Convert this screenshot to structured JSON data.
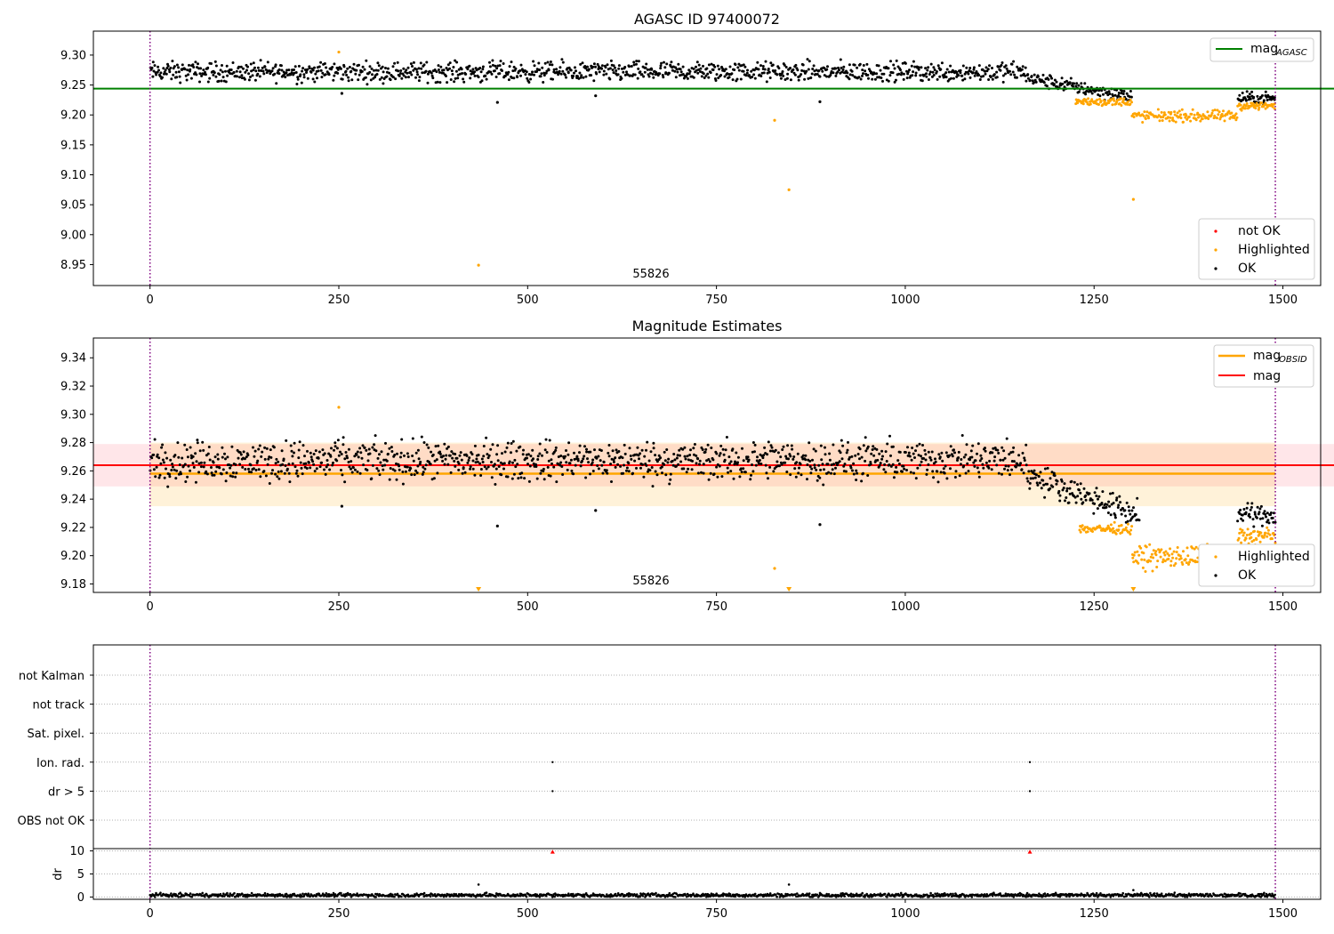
{
  "chart_data": [
    {
      "type": "scatter",
      "title": "AGASC ID 97400072",
      "xlim": [
        -75,
        1550
      ],
      "ylim": [
        8.915,
        9.34
      ],
      "xticks": [
        0,
        250,
        500,
        750,
        1000,
        1250,
        1500
      ],
      "yticks": [
        8.95,
        9.0,
        9.05,
        9.1,
        9.15,
        9.2,
        9.25,
        9.3
      ],
      "ytick_labels": [
        "8.95",
        "9.00",
        "9.05",
        "9.10",
        "9.15",
        "9.20",
        "9.25",
        "9.30"
      ],
      "annotation": "55826",
      "vlines": [
        0,
        1490
      ],
      "lines": [
        {
          "name": "mag",
          "subscript": "AGASC",
          "y": 9.244,
          "x": [
            -75,
            1570
          ],
          "color": "#008000"
        }
      ],
      "legend_top": [
        {
          "name": "mag",
          "subscript": "AGASC",
          "color": "#008000",
          "kind": "line"
        }
      ],
      "legend_bottom": [
        {
          "name": "not OK",
          "color": "#ff0000",
          "kind": "point"
        },
        {
          "name": "Highlighted",
          "color": "#ffa500",
          "kind": "point"
        },
        {
          "name": "OK",
          "color": "#000000",
          "kind": "point"
        }
      ],
      "ok_segments": [
        {
          "x": [
            0,
            1160
          ],
          "level": 9.272,
          "spread": 0.014
        },
        {
          "x": [
            1160,
            1300
          ],
          "level_start": 9.262,
          "level_end": 9.23,
          "spread": 0.01
        },
        {
          "x": [
            1440,
            1490
          ],
          "level": 9.228,
          "spread": 0.008
        }
      ],
      "highlighted_segments": [
        {
          "x": [
            1225,
            1300
          ],
          "level": 9.222,
          "spread": 0.006
        },
        {
          "x": [
            1300,
            1440
          ],
          "level": 9.198,
          "spread": 0.008
        },
        {
          "x": [
            1440,
            1490
          ],
          "level": 9.215,
          "spread": 0.006
        }
      ],
      "outliers": [
        {
          "x": 254,
          "y": 9.236,
          "series": "OK"
        },
        {
          "x": 460,
          "y": 9.221,
          "series": "OK"
        },
        {
          "x": 590,
          "y": 9.232,
          "series": "OK"
        },
        {
          "x": 887,
          "y": 9.222,
          "series": "OK"
        },
        {
          "x": 250,
          "y": 9.305,
          "series": "Highlighted"
        },
        {
          "x": 435,
          "y": 8.949,
          "series": "Highlighted"
        },
        {
          "x": 827,
          "y": 9.191,
          "series": "Highlighted"
        },
        {
          "x": 846,
          "y": 9.075,
          "series": "Highlighted"
        },
        {
          "x": 1302,
          "y": 9.059,
          "series": "Highlighted"
        }
      ]
    },
    {
      "type": "scatter",
      "title": "Magnitude Estimates",
      "xlim": [
        -75,
        1550
      ],
      "ylim": [
        9.174,
        9.354
      ],
      "xticks": [
        0,
        250,
        500,
        750,
        1000,
        1250,
        1500
      ],
      "yticks": [
        9.18,
        9.2,
        9.22,
        9.24,
        9.26,
        9.28,
        9.3,
        9.32,
        9.34
      ],
      "ytick_labels": [
        "9.18",
        "9.20",
        "9.22",
        "9.24",
        "9.26",
        "9.28",
        "9.30",
        "9.32",
        "9.34"
      ],
      "annotation": "55826",
      "vlines": [
        0,
        1490
      ],
      "bands": [
        {
          "x": [
            -75,
            1570
          ],
          "y": [
            9.249,
            9.279
          ],
          "color": "#ffb6c1",
          "opacity": 0.35
        },
        {
          "x": [
            0,
            1490
          ],
          "y": [
            9.235,
            9.28
          ],
          "color": "#ffa500",
          "opacity": 0.15
        }
      ],
      "lines": [
        {
          "name": "mag",
          "subscript": "OBSID",
          "y": 9.258,
          "x": [
            0,
            1490
          ],
          "color": "#ffa500"
        },
        {
          "name": "mag",
          "y": 9.264,
          "x": [
            -75,
            1570
          ],
          "color": "#ff0000"
        }
      ],
      "legend_top": [
        {
          "name": "mag",
          "subscript": "OBSID",
          "color": "#ffa500",
          "kind": "line"
        },
        {
          "name": "mag",
          "color": "#ff0000",
          "kind": "line"
        }
      ],
      "legend_bottom": [
        {
          "name": "Highlighted",
          "color": "#ffa500",
          "kind": "point"
        },
        {
          "name": "OK",
          "color": "#000000",
          "kind": "point"
        }
      ],
      "ok_segments": [
        {
          "x": [
            0,
            1160
          ],
          "level": 9.267,
          "spread": 0.012
        },
        {
          "x": [
            1160,
            1310
          ],
          "level_start": 9.258,
          "level_end": 9.228,
          "spread": 0.008
        },
        {
          "x": [
            1440,
            1490
          ],
          "level": 9.229,
          "spread": 0.006
        }
      ],
      "highlighted_segments": [
        {
          "x": [
            1230,
            1300
          ],
          "level": 9.219,
          "spread": 0.003
        },
        {
          "x": [
            1300,
            1440
          ],
          "level": 9.199,
          "spread": 0.007
        },
        {
          "x": [
            1440,
            1490
          ],
          "level": 9.214,
          "spread": 0.005
        }
      ],
      "outliers": [
        {
          "x": 254,
          "y": 9.235,
          "series": "OK"
        },
        {
          "x": 460,
          "y": 9.221,
          "series": "OK"
        },
        {
          "x": 590,
          "y": 9.232,
          "series": "OK"
        },
        {
          "x": 887,
          "y": 9.222,
          "series": "OK"
        },
        {
          "x": 250,
          "y": 9.305,
          "series": "Highlighted"
        },
        {
          "x": 827,
          "y": 9.191,
          "series": "Highlighted"
        }
      ],
      "offscale_markers": [
        {
          "x": 435,
          "series": "Highlighted"
        },
        {
          "x": 846,
          "series": "Highlighted"
        },
        {
          "x": 1302,
          "series": "Highlighted"
        }
      ]
    },
    {
      "type": "scatter",
      "title": "",
      "xlim": [
        -75,
        1550
      ],
      "xticks": [
        0,
        250,
        500,
        750,
        1000,
        1250,
        1500
      ],
      "flag_rows": [
        "not Kalman",
        "not track",
        "Sat. pixel.",
        "Ion. rad.",
        "dr > 5",
        "OBS not OK"
      ],
      "flag_points": [
        {
          "row": "Ion. rad.",
          "x": [
            533,
            1165
          ]
        },
        {
          "row": "dr > 5",
          "x": [
            533,
            1165
          ]
        }
      ],
      "vlines": [
        0,
        1490
      ],
      "dr_panel": {
        "ylabel": "dr",
        "ylim": [
          -0.5,
          10.5
        ],
        "yticks": [
          0,
          5,
          10
        ],
        "ytick_labels": [
          "0",
          "5",
          "10"
        ],
        "baseline": {
          "x": [
            0,
            1490
          ],
          "level": 0.4,
          "spread": 0.35
        },
        "outliers": [
          {
            "x": 435,
            "y": 2.7,
            "color": "#000000"
          },
          {
            "x": 846,
            "y": 2.7,
            "color": "#000000"
          },
          {
            "x": 1302,
            "y": 1.5,
            "color": "#000000"
          },
          {
            "x": 533,
            "y": 9.8,
            "color": "#ff0000"
          },
          {
            "x": 1165,
            "y": 9.8,
            "color": "#ff0000"
          }
        ]
      }
    }
  ]
}
